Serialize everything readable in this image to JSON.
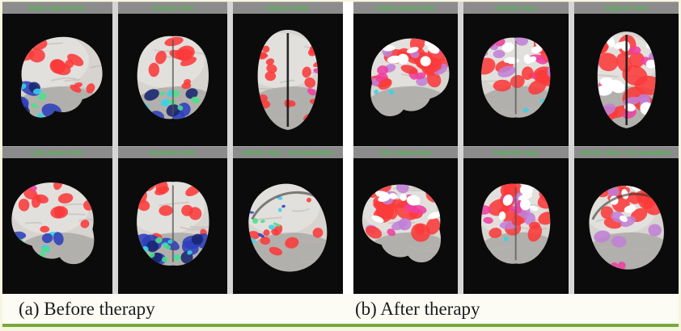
{
  "figure": {
    "panels": [
      {
        "id": "a",
        "phase": "before",
        "caption": "(a) Before therapy",
        "views": [
          {
            "label": "Right Lateral View",
            "type": "lateral-right"
          },
          {
            "label": "Anterior View",
            "type": "anterior"
          },
          {
            "label": "Superior View",
            "type": "superior"
          },
          {
            "label": "Left Lateral View",
            "type": "lateral-left"
          },
          {
            "label": "Posterior View",
            "type": "posterior"
          },
          {
            "label": "Inferior View - No cerebellum",
            "type": "inferior"
          }
        ]
      },
      {
        "id": "b",
        "phase": "after",
        "caption": "(b) After therapy",
        "views": [
          {
            "label": "Right Lateral View",
            "type": "lateral-right"
          },
          {
            "label": "Anterior View",
            "type": "anterior"
          },
          {
            "label": "Superior View",
            "type": "superior"
          },
          {
            "label": "Left Lateral View",
            "type": "lateral-left"
          },
          {
            "label": "Posterior View",
            "type": "posterior"
          },
          {
            "label": "Inferior View - No cerebellum",
            "type": "inferior"
          }
        ]
      }
    ],
    "colors": {
      "label_green": "#3ec43e",
      "header_gray": "#8c8c8c",
      "separator_gray": "#d6d6d6",
      "cell_bg": "#0b0b0b",
      "frame_cream": "#f6f5df",
      "bottom_line_green": "#79a93d",
      "caption_bg": "#fcfcf5",
      "caption_text": "#1b1b1b",
      "brain_gray": "#d7d4d0",
      "activation": {
        "red": "#fa3a3a",
        "magenta": "#ee3f9e",
        "violet": "#c07fd6",
        "white": "#ffffff",
        "blue": "#2c3fbb",
        "deep_blue": "#18246e",
        "cyan": "#35d3e8",
        "green": "#4ce08a"
      }
    }
  }
}
